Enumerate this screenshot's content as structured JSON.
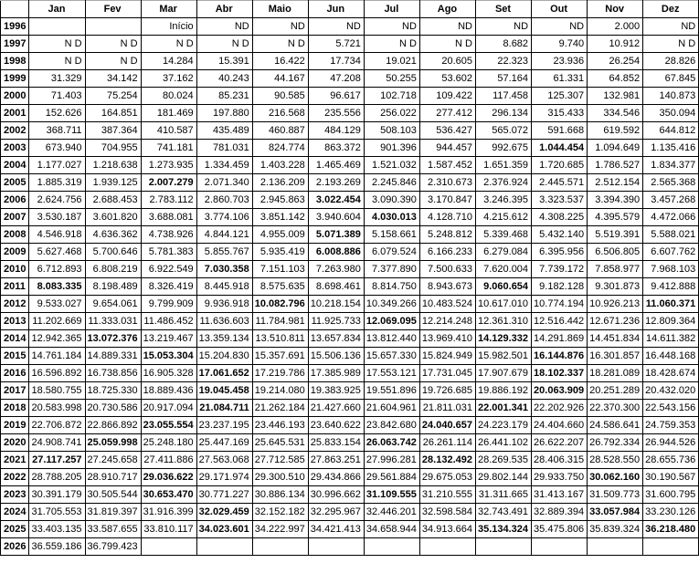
{
  "headers": [
    "",
    "Jan",
    "Fev",
    "Mar",
    "Abr",
    "Maio",
    "Jun",
    "Jul",
    "Ago",
    "Set",
    "Out",
    "Nov",
    "Dez"
  ],
  "rows": [
    {
      "year": "1996",
      "cells": [
        "",
        "",
        "Início",
        "ND",
        "ND",
        "ND",
        "ND",
        "ND",
        "ND",
        "ND",
        "2.000",
        "ND"
      ],
      "bold": []
    },
    {
      "year": "1997",
      "cells": [
        "N D",
        "N D",
        "N D",
        "N D",
        "N D",
        "5.721",
        "N D",
        "N D",
        "8.682",
        "9.740",
        "10.912",
        "N D"
      ],
      "bold": []
    },
    {
      "year": "1998",
      "cells": [
        "N D",
        "N D",
        "14.284",
        "15.391",
        "16.422",
        "17.734",
        "19.021",
        "20.605",
        "22.323",
        "23.936",
        "26.254",
        "28.826"
      ],
      "bold": []
    },
    {
      "year": "1999",
      "cells": [
        "31.329",
        "34.142",
        "37.162",
        "40.243",
        "44.167",
        "47.208",
        "50.255",
        "53.602",
        "57.164",
        "61.331",
        "64.852",
        "67.845"
      ],
      "bold": []
    },
    {
      "year": "2000",
      "cells": [
        "71.403",
        "75.254",
        "80.024",
        "85.231",
        "90.585",
        "96.617",
        "102.718",
        "109.422",
        "117.458",
        "125.307",
        "132.981",
        "140.873"
      ],
      "bold": []
    },
    {
      "year": "2001",
      "cells": [
        "152.626",
        "164.851",
        "181.469",
        "197.880",
        "216.568",
        "235.556",
        "256.022",
        "277.412",
        "296.134",
        "315.433",
        "334.546",
        "350.094"
      ],
      "bold": []
    },
    {
      "year": "2002",
      "cells": [
        "368.711",
        "387.364",
        "410.587",
        "435.489",
        "460.887",
        "484.129",
        "508.103",
        "536.427",
        "565.072",
        "591.668",
        "619.592",
        "644.812"
      ],
      "bold": []
    },
    {
      "year": "2003",
      "cells": [
        "673.940",
        "704.955",
        "741.181",
        "781.031",
        "824.774",
        "863.372",
        "901.396",
        "944.457",
        "992.675",
        "1.044.454",
        "1.094.649",
        "1.135.416"
      ],
      "bold": [
        9
      ]
    },
    {
      "year": "2004",
      "cells": [
        "1.177.027",
        "1.218.638",
        "1.273.935",
        "1.334.459",
        "1.403.228",
        "1.465.469",
        "1.521.032",
        "1.587.452",
        "1.651.359",
        "1.720.685",
        "1.786.527",
        "1.834.377"
      ],
      "bold": []
    },
    {
      "year": "2005",
      "cells": [
        "1.885.319",
        "1.939.125",
        "2.007.279",
        "2.071.340",
        "2.136.209",
        "2.193.269",
        "2.245.846",
        "2.310.673",
        "2.376.924",
        "2.445.571",
        "2.512.154",
        "2.565.368"
      ],
      "bold": [
        2
      ]
    },
    {
      "year": "2006",
      "cells": [
        "2.624.756",
        "2.688.453",
        "2.783.112",
        "2.860.703",
        "2.945.863",
        "3.022.454",
        "3.090.390",
        "3.170.847",
        "3.246.395",
        "3.323.537",
        "3.394.390",
        "3.457.268"
      ],
      "bold": [
        5
      ]
    },
    {
      "year": "2007",
      "cells": [
        "3.530.187",
        "3.601.820",
        "3.688.081",
        "3.774.106",
        "3.851.142",
        "3.940.604",
        "4.030.013",
        "4.128.710",
        "4.215.612",
        "4.308.225",
        "4.395.579",
        "4.472.066"
      ],
      "bold": [
        6
      ]
    },
    {
      "year": "2008",
      "cells": [
        "4.546.918",
        "4.636.362",
        "4.738.926",
        "4.844.121",
        "4.955.009",
        "5.071.389",
        "5.158.661",
        "5.248.812",
        "5.339.468",
        "5.432.140",
        "5.519.391",
        "5.588.021"
      ],
      "bold": [
        5
      ]
    },
    {
      "year": "2009",
      "cells": [
        "5.627.468",
        "5.700.646",
        "5.781.383",
        "5.855.767",
        "5.935.419",
        "6.008.886",
        "6.079.524",
        "6.166.233",
        "6.279.084",
        "6.395.956",
        "6.506.805",
        "6.607.762"
      ],
      "bold": [
        5
      ]
    },
    {
      "year": "2010",
      "cells": [
        "6.712.893",
        "6.808.219",
        "6.922.549",
        "7.030.358",
        "7.151.103",
        "7.263.980",
        "7.377.890",
        "7.500.633",
        "7.620.004",
        "7.739.172",
        "7.858.977",
        "7.968.103"
      ],
      "bold": [
        3
      ]
    },
    {
      "year": "2011",
      "cells": [
        "8.083.335",
        "8.198.489",
        "8.326.419",
        "8.445.918",
        "8.575.635",
        "8.698.461",
        "8.814.750",
        "8.943.673",
        "9.060.654",
        "9.182.128",
        "9.301.873",
        "9.412.888"
      ],
      "bold": [
        0,
        8
      ]
    },
    {
      "year": "2012",
      "cells": [
        "9.533.027",
        "9.654.061",
        "9.799.909",
        "9.936.918",
        "10.082.796",
        "10.218.154",
        "10.349.266",
        "10.483.524",
        "10.617.010",
        "10.774.194",
        "10.926.213",
        "11.060.371"
      ],
      "bold": [
        4,
        11
      ]
    },
    {
      "year": "2013",
      "cells": [
        "11.202.669",
        "11.333.031",
        "11.486.452",
        "11.636.603",
        "11.784.981",
        "11.925.733",
        "12.069.095",
        "12.214.248",
        "12.361.310",
        "12.516.442",
        "12.671.236",
        "12.809.364"
      ],
      "bold": [
        6
      ]
    },
    {
      "year": "2014",
      "cells": [
        "12.942.365",
        "13.072.376",
        "13.219.467",
        "13.359.134",
        "13.510.811",
        "13.657.834",
        "13.812.440",
        "13.969.410",
        "14.129.332",
        "14.291.869",
        "14.451.834",
        "14.611.382"
      ],
      "bold": [
        1,
        8
      ]
    },
    {
      "year": "2015",
      "cells": [
        "14.761.184",
        "14.889.331",
        "15.053.304",
        "15.204.830",
        "15.357.691",
        "15.506.136",
        "15.657.330",
        "15.824.949",
        "15.982.501",
        "16.144.876",
        "16.301.857",
        "16.448.168"
      ],
      "bold": [
        2,
        9
      ]
    },
    {
      "year": "2016",
      "cells": [
        "16.596.892",
        "16.738.856",
        "16.905.328",
        "17.061.652",
        "17.219.786",
        "17.385.989",
        "17.553.121",
        "17.731.045",
        "17.907.679",
        "18.102.337",
        "18.281.089",
        "18.428.674"
      ],
      "bold": [
        3,
        9
      ]
    },
    {
      "year": "2017",
      "cells": [
        "18.580.755",
        "18.725.330",
        "18.889.436",
        "19.045.458",
        "19.214.080",
        "19.383.925",
        "19.551.896",
        "19.726.685",
        "19.886.192",
        "20.063.909",
        "20.251.289",
        "20.432.020"
      ],
      "bold": [
        3,
        9
      ]
    },
    {
      "year": "2018",
      "cells": [
        "20.583.998",
        "20.730.586",
        "20.917.094",
        "21.084.711",
        "21.262.184",
        "21.427.660",
        "21.604.961",
        "21.811.031",
        "22.001.341",
        "22.202.926",
        "22.370.300",
        "22.543.156"
      ],
      "bold": [
        3,
        8
      ]
    },
    {
      "year": "2019",
      "cells": [
        "22.706.872",
        "22.866.892",
        "23.055.554",
        "23.237.195",
        "23.446.193",
        "23.640.622",
        "23.842.680",
        "24.040.657",
        "24.223.179",
        "24.404.660",
        "24.586.641",
        "24.759.353"
      ],
      "bold": [
        2,
        7
      ]
    },
    {
      "year": "2020",
      "cells": [
        "24.908.741",
        "25.059.998",
        "25.248.180",
        "25.447.169",
        "25.645.531",
        "25.833.154",
        "26.063.742",
        "26.261.114",
        "26.441.102",
        "26.622.207",
        "26.792.334",
        "26.944.526"
      ],
      "bold": [
        1,
        6
      ]
    },
    {
      "year": "2021",
      "cells": [
        "27.117.257",
        "27.245.658",
        "27.411.886",
        "27.563.068",
        "27.712.585",
        "27.863.251",
        "27.996.281",
        "28.132.492",
        "28.269.535",
        "28.406.315",
        "28.528.550",
        "28.655.736"
      ],
      "bold": [
        0,
        7
      ]
    },
    {
      "year": "2022",
      "cells": [
        "28.788.205",
        "28.910.717",
        "29.036.622",
        "29.171.974",
        "29.300.510",
        "29.434.866",
        "29.561.884",
        "29.675.053",
        "29.802.144",
        "29.933.750",
        "30.062.160",
        "30.190.567"
      ],
      "bold": [
        2,
        10
      ]
    },
    {
      "year": "2023",
      "cells": [
        "30.391.179",
        "30.505.544",
        "30.653.470",
        "30.771.227",
        "30.886.134",
        "30.996.662",
        "31.109.555",
        "31.210.555",
        "31.311.665",
        "31.413.167",
        "31.509.773",
        "31.600.795"
      ],
      "bold": [
        2,
        6
      ]
    },
    {
      "year": "2024",
      "cells": [
        "31.705.553",
        "31.819.397",
        "31.916.399",
        "32.029.459",
        "32.152.182",
        "32.295.967",
        "32.446.201",
        "32.598.584",
        "32.743.491",
        "32.889.394",
        "33.057.984",
        "33.230.126"
      ],
      "bold": [
        3,
        10
      ]
    },
    {
      "year": "2025",
      "cells": [
        "33.403.135",
        "33.587.655",
        "33.810.117",
        "34.023.601",
        "34.222.997",
        "34.421.413",
        "34.658.944",
        "34.913.664",
        "35.134.324",
        "35.475.806",
        "35.839.324",
        "36.218.480"
      ],
      "bold": [
        3,
        8,
        11
      ]
    },
    {
      "year": "2026",
      "cells": [
        "36.559.186",
        "36.799.423",
        "",
        "",
        "",
        "",
        "",
        "",
        "",
        "",
        "",
        ""
      ],
      "bold": []
    }
  ]
}
